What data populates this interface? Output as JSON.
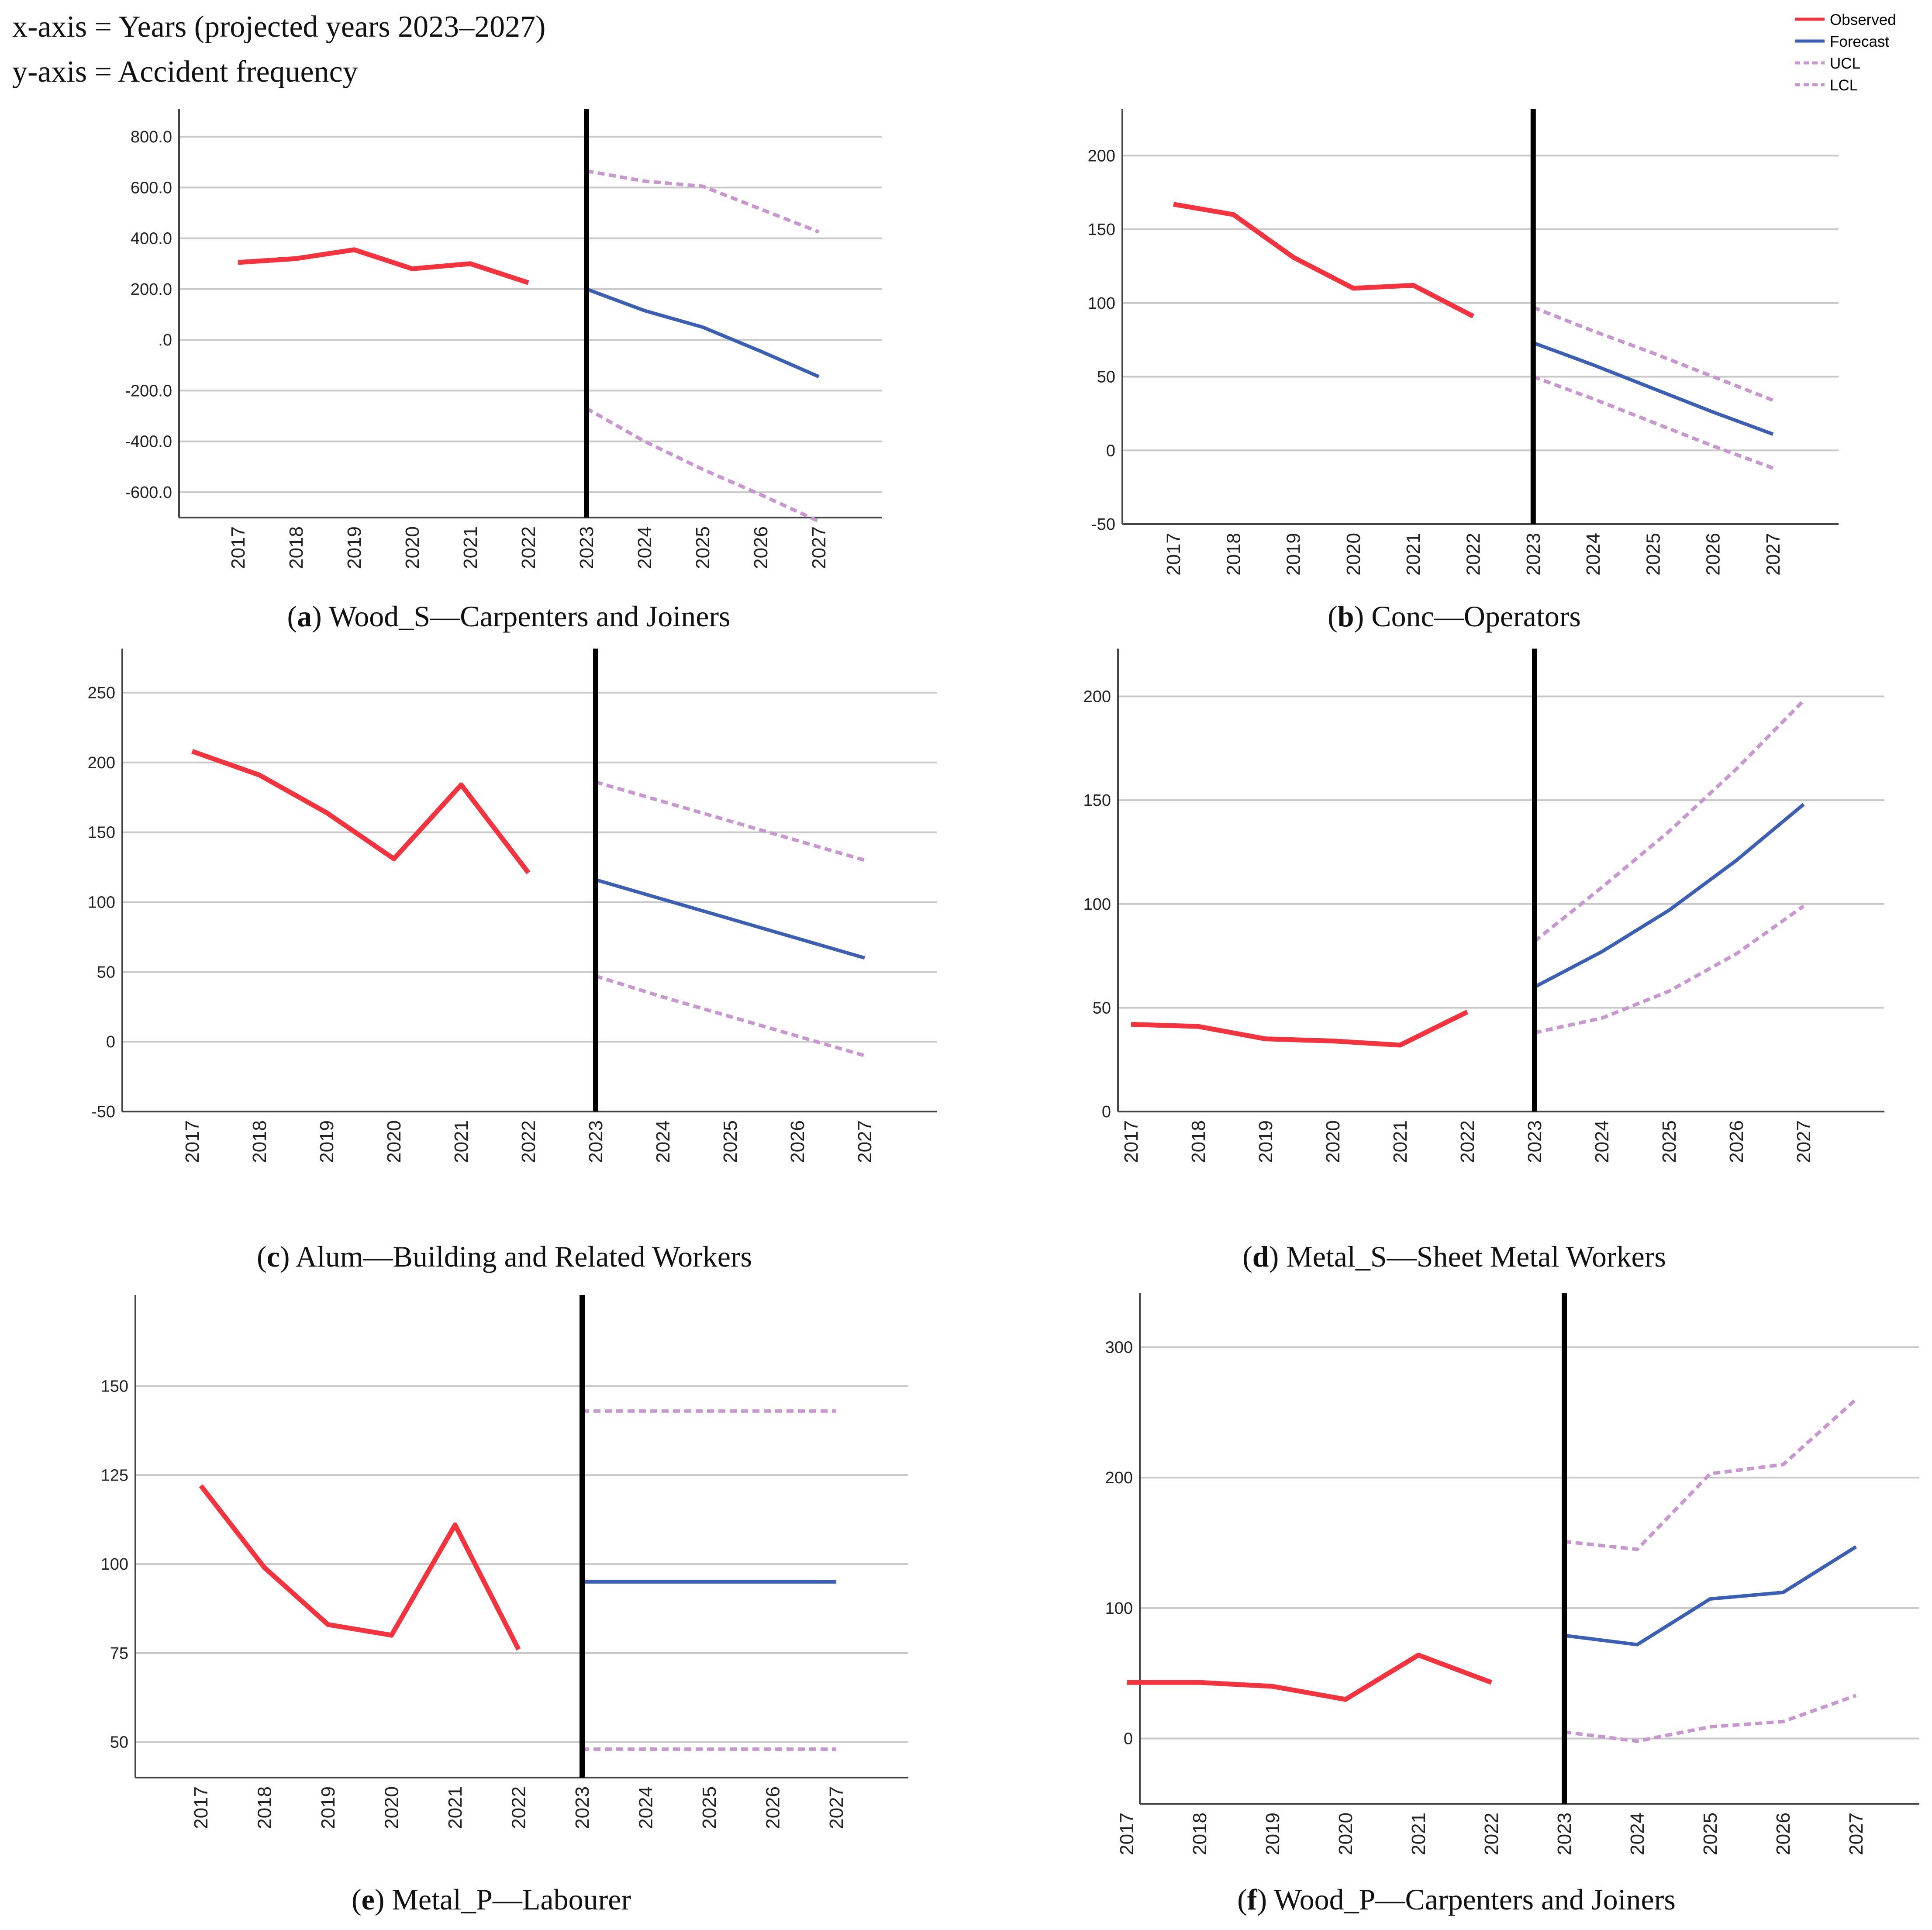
{
  "notes": {
    "x_axis": "x-axis = Years (projected years 2023–2027)",
    "y_axis": "y-axis = Accident frequency"
  },
  "legend": {
    "observed": "Observed",
    "forecast": "Forecast",
    "ucl": "UCL",
    "lcl": "LCL"
  },
  "colors": {
    "observed": "#f5333f",
    "forecast": "#3b5fb5",
    "ucl": "#c897d0",
    "lcl": "#c897d0",
    "divider": "#000000",
    "grid": "#c8c8c8"
  },
  "chart_data": [
    {
      "type": "line",
      "id": "a",
      "caption": {
        "letter": "a",
        "title": "Wood_S—Carpenters and Joiners"
      },
      "x": [
        "2017",
        "2018",
        "2019",
        "2020",
        "2021",
        "2022",
        "2023",
        "2024",
        "2025",
        "2026",
        "2027"
      ],
      "ylim": [
        -700,
        900
      ],
      "yticks": [
        800,
        600,
        400,
        200,
        0,
        -200,
        -400,
        -600
      ],
      "ytick_labels": [
        "800.0",
        "600.0",
        "400.0",
        "200.0",
        ".0",
        "-200.0",
        "-400.0",
        "-600.0"
      ],
      "divider": "2023",
      "series": [
        {
          "key": "observed",
          "values": [
            305,
            320,
            355,
            280,
            300,
            225,
            null,
            null,
            null,
            null,
            null
          ]
        },
        {
          "key": "forecast",
          "values": [
            null,
            null,
            null,
            null,
            null,
            null,
            200,
            115,
            50,
            -45,
            -145
          ]
        },
        {
          "key": "ucl",
          "values": [
            null,
            null,
            null,
            null,
            null,
            null,
            665,
            625,
            605,
            515,
            425
          ]
        },
        {
          "key": "lcl",
          "values": [
            null,
            null,
            null,
            null,
            null,
            null,
            -270,
            -400,
            -510,
            -610,
            -715
          ]
        }
      ]
    },
    {
      "type": "line",
      "id": "b",
      "caption": {
        "letter": "b",
        "title": "Conc—Operators"
      },
      "x": [
        "2017",
        "2018",
        "2019",
        "2020",
        "2021",
        "2022",
        "2023",
        "2024",
        "2025",
        "2026",
        "2027"
      ],
      "ylim": [
        -50,
        230
      ],
      "yticks": [
        200,
        150,
        100,
        50,
        0,
        -50
      ],
      "ytick_labels": [
        "200",
        "150",
        "100",
        "50",
        "0",
        "-50"
      ],
      "divider": "2023",
      "series": [
        {
          "key": "observed",
          "values": [
            167,
            160,
            131,
            110,
            112,
            91,
            null,
            null,
            null,
            null,
            null
          ]
        },
        {
          "key": "forecast",
          "values": [
            null,
            null,
            null,
            null,
            null,
            null,
            73,
            58,
            42,
            26,
            11
          ]
        },
        {
          "key": "ucl",
          "values": [
            null,
            null,
            null,
            null,
            null,
            null,
            97,
            81,
            66,
            50,
            34
          ]
        },
        {
          "key": "lcl",
          "values": [
            null,
            null,
            null,
            null,
            null,
            null,
            50,
            35,
            19,
            3,
            -12
          ]
        }
      ]
    },
    {
      "type": "line",
      "id": "c",
      "caption": {
        "letter": "c",
        "title": "Alum—Building and Related Workers"
      },
      "x": [
        "2017",
        "2018",
        "2019",
        "2020",
        "2021",
        "2022",
        "2023",
        "2024",
        "2025",
        "2026",
        "2027"
      ],
      "ylim": [
        -50,
        280
      ],
      "yticks": [
        250,
        200,
        150,
        100,
        50,
        0,
        -50
      ],
      "ytick_labels": [
        "250",
        "200",
        "150",
        "100",
        "50",
        "0",
        "-50"
      ],
      "divider": "2023",
      "series": [
        {
          "key": "observed",
          "values": [
            208,
            191,
            164,
            131,
            184,
            121,
            null,
            null,
            null,
            null,
            null
          ]
        },
        {
          "key": "forecast",
          "values": [
            null,
            null,
            null,
            null,
            null,
            null,
            116,
            102,
            88,
            74,
            60
          ]
        },
        {
          "key": "ucl",
          "values": [
            null,
            null,
            null,
            null,
            null,
            null,
            186,
            172,
            158,
            144,
            130
          ]
        },
        {
          "key": "lcl",
          "values": [
            null,
            null,
            null,
            null,
            null,
            null,
            47,
            32,
            18,
            4,
            -10
          ]
        }
      ]
    },
    {
      "type": "line",
      "id": "d",
      "caption": {
        "letter": "d",
        "title": "Metal_S—Sheet Metal Workers"
      },
      "x": [
        "2017",
        "2018",
        "2019",
        "2020",
        "2021",
        "2022",
        "2023",
        "2024",
        "2025",
        "2026",
        "2027"
      ],
      "ylim": [
        0,
        222
      ],
      "yticks": [
        200,
        150,
        100,
        50,
        0
      ],
      "ytick_labels": [
        "200",
        "150",
        "100",
        "50",
        "0"
      ],
      "divider": "2023",
      "series": [
        {
          "key": "observed",
          "values": [
            42,
            41,
            35,
            34,
            32,
            48,
            null,
            null,
            null,
            null,
            null
          ]
        },
        {
          "key": "forecast",
          "values": [
            null,
            null,
            null,
            null,
            null,
            null,
            60,
            77,
            97,
            121,
            148
          ]
        },
        {
          "key": "ucl",
          "values": [
            null,
            null,
            null,
            null,
            null,
            null,
            82,
            108,
            135,
            165,
            198
          ]
        },
        {
          "key": "lcl",
          "values": [
            null,
            null,
            null,
            null,
            null,
            null,
            38,
            45,
            58,
            76,
            99
          ]
        }
      ]
    },
    {
      "type": "line",
      "id": "e",
      "caption": {
        "letter": "e",
        "title": "Metal_P—Labourer"
      },
      "x": [
        "2017",
        "2018",
        "2019",
        "2020",
        "2021",
        "2022",
        "2023",
        "2024",
        "2025",
        "2026",
        "2027"
      ],
      "ylim": [
        40,
        175
      ],
      "yticks": [
        150,
        125,
        100,
        75,
        50
      ],
      "ytick_labels": [
        "150",
        "125",
        "100",
        "75",
        "50"
      ],
      "divider": "2023",
      "series": [
        {
          "key": "observed",
          "values": [
            122,
            99,
            83,
            80,
            111,
            76,
            null,
            null,
            null,
            null,
            null
          ]
        },
        {
          "key": "forecast",
          "values": [
            null,
            null,
            null,
            null,
            null,
            null,
            95,
            95,
            95,
            95,
            95
          ]
        },
        {
          "key": "ucl",
          "values": [
            null,
            null,
            null,
            null,
            null,
            null,
            143,
            143,
            143,
            143,
            143
          ]
        },
        {
          "key": "lcl",
          "values": [
            null,
            null,
            null,
            null,
            null,
            null,
            48,
            48,
            48,
            48,
            48
          ]
        }
      ]
    },
    {
      "type": "line",
      "id": "f",
      "caption": {
        "letter": "f",
        "title": "Wood_P—Carpenters and Joiners"
      },
      "x": [
        "2017",
        "2018",
        "2019",
        "2020",
        "2021",
        "2022",
        "2023",
        "2024",
        "2025",
        "2026",
        "2027"
      ],
      "ylim": [
        -50,
        340
      ],
      "yticks": [
        300,
        200,
        100,
        0
      ],
      "ytick_labels": [
        "300",
        "200",
        "100",
        "0"
      ],
      "divider": "2023",
      "series": [
        {
          "key": "observed",
          "values": [
            43,
            43,
            40,
            30,
            64,
            43,
            null,
            null,
            null,
            null,
            null
          ]
        },
        {
          "key": "forecast",
          "values": [
            null,
            null,
            null,
            null,
            null,
            null,
            79,
            72,
            107,
            112,
            147
          ]
        },
        {
          "key": "ucl",
          "values": [
            null,
            null,
            null,
            null,
            null,
            null,
            151,
            145,
            203,
            210,
            260
          ]
        },
        {
          "key": "lcl",
          "values": [
            null,
            null,
            null,
            null,
            null,
            null,
            5,
            -2,
            9,
            13,
            33
          ]
        }
      ]
    }
  ]
}
